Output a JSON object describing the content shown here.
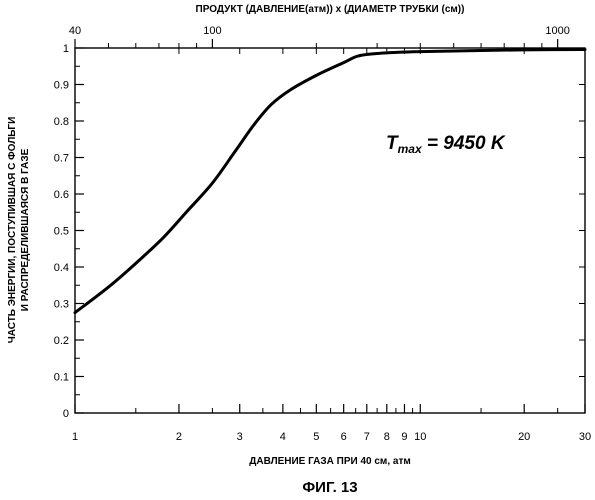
{
  "caption": "ФИГ. 13",
  "chart_data": {
    "type": "line",
    "top_axis_label": "ПРОДУКТ (ДАВЛЕНИЕ(атм)) x (ДИАМЕТР ТРУБКИ (см))",
    "xlabel": "ДАВЛЕНИЕ ГАЗА ПРИ 40 см, атм",
    "ylabel_line1": "ЧАСТЬ ЭНЕРГИИ, ПОСТУПИВШАЯ С ФОЛЬГИ",
    "ylabel_line2": "И РАСПРЕДЕЛИВШАЯСЯ В ГАЗЕ",
    "annotation": {
      "main": "T",
      "sub": "max",
      "rest": " = 9450 K"
    },
    "x_scale": "log",
    "xlim": [
      1,
      30
    ],
    "ylim": [
      0,
      1
    ],
    "x_ticks": [
      {
        "v": 1,
        "label": "1"
      },
      {
        "v": 2,
        "label": "2"
      },
      {
        "v": 3,
        "label": "3"
      },
      {
        "v": 4,
        "label": "4"
      },
      {
        "v": 5,
        "label": "5"
      },
      {
        "v": 6,
        "label": "6"
      },
      {
        "v": 7,
        "label": "7"
      },
      {
        "v": 8,
        "label": "8"
      },
      {
        "v": 9,
        "label": "9"
      },
      {
        "v": 10,
        "label": "10"
      },
      {
        "v": 20,
        "label": "20"
      },
      {
        "v": 30,
        "label": "30"
      }
    ],
    "x_minor_ticks": [
      1.5,
      2.5,
      3.5,
      4.5,
      5.5,
      6.5,
      7.5,
      8.5,
      9.5,
      15,
      25
    ],
    "top_ticks": [
      {
        "v": 40,
        "label": "40"
      },
      {
        "v": 100,
        "label": "100"
      },
      {
        "v": 1000,
        "label": "1000"
      }
    ],
    "top_minor_ticks": [
      50,
      60,
      70,
      80,
      90,
      200,
      300,
      400,
      500,
      600,
      700,
      800,
      900
    ],
    "top_scale": {
      "min": 40,
      "max": 1200
    },
    "y_ticks": [
      {
        "v": 0,
        "label": "0"
      },
      {
        "v": 0.1,
        "label": "0.1"
      },
      {
        "v": 0.2,
        "label": "0.2"
      },
      {
        "v": 0.3,
        "label": "0.3"
      },
      {
        "v": 0.4,
        "label": "0.4"
      },
      {
        "v": 0.5,
        "label": "0.5"
      },
      {
        "v": 0.6,
        "label": "0.6"
      },
      {
        "v": 0.7,
        "label": "0.7"
      },
      {
        "v": 0.8,
        "label": "0.8"
      },
      {
        "v": 0.9,
        "label": "0.9"
      },
      {
        "v": 1,
        "label": "1"
      }
    ],
    "y_minor_ticks": [
      0.05,
      0.15,
      0.25,
      0.35,
      0.45,
      0.55,
      0.65,
      0.75,
      0.85,
      0.95
    ],
    "series": [
      {
        "x": [
          1,
          1.25,
          1.5,
          1.8,
          2.1,
          2.5,
          2.9,
          3.3,
          3.7,
          4.2,
          5,
          6,
          6.6,
          7.5,
          8.5,
          10,
          15,
          20,
          30
        ],
        "y": [
          0.275,
          0.345,
          0.41,
          0.48,
          0.55,
          0.63,
          0.715,
          0.79,
          0.845,
          0.885,
          0.925,
          0.96,
          0.978,
          0.985,
          0.988,
          0.99,
          0.993,
          0.995,
          0.996
        ]
      }
    ],
    "grid": false
  }
}
